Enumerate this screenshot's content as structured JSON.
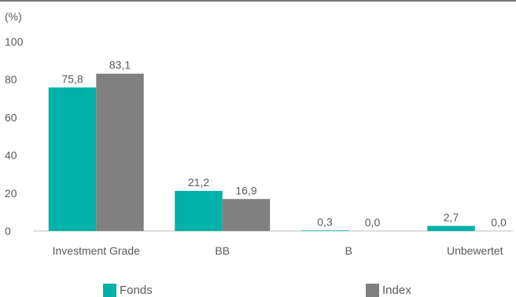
{
  "chart_data": {
    "type": "bar",
    "unit_label": "(%)",
    "categories": [
      "Investment Grade",
      "BB",
      "B",
      "Unbewertet"
    ],
    "series": [
      {
        "name": "Fonds",
        "color": "#00b2a9",
        "values": [
          75.8,
          21.2,
          0.3,
          2.7
        ],
        "labels": [
          "75,8",
          "21,2",
          "0,3",
          "2,7"
        ]
      },
      {
        "name": "Index",
        "color": "#808080",
        "values": [
          83.1,
          16.9,
          0.0,
          0.0
        ],
        "labels": [
          "83,1",
          "16,9",
          "0,0",
          "0,0"
        ]
      }
    ],
    "ylim": [
      0,
      100
    ],
    "yticks": [
      0,
      20,
      40,
      60,
      80,
      100
    ],
    "grid": false,
    "legend_position": "bottom"
  }
}
